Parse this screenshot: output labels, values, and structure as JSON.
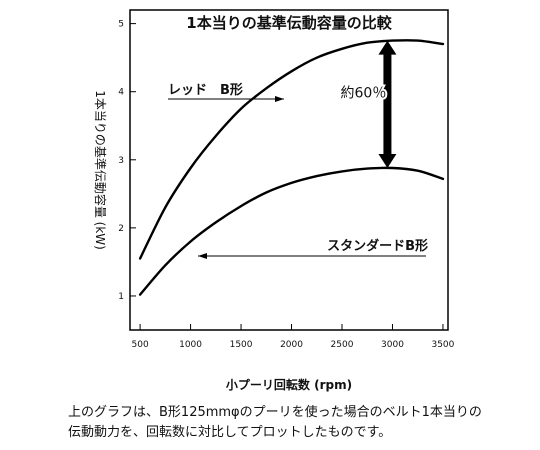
{
  "chart_data": {
    "type": "line",
    "title": "1本当りの基準伝動容量の比較",
    "xlabel": "小プーリ回転数 (rpm)",
    "ylabel": "1本当りの基準伝動容量 (kW)",
    "xlim": [
      400,
      3550
    ],
    "ylim": [
      0.5,
      5.2
    ],
    "x_ticks": [
      500,
      1000,
      1500,
      2000,
      2500,
      3000,
      3500
    ],
    "y_ticks": [
      1,
      2,
      3,
      4,
      5
    ],
    "grid": false,
    "series": [
      {
        "name": "レッド　B形",
        "x": [
          500,
          750,
          1000,
          1250,
          1500,
          1750,
          2000,
          2250,
          2500,
          2750,
          3000,
          3250,
          3500
        ],
        "values": [
          1.55,
          2.3,
          2.88,
          3.35,
          3.75,
          4.05,
          4.3,
          4.5,
          4.63,
          4.72,
          4.75,
          4.75,
          4.7
        ]
      },
      {
        "name": "スタンダードB形",
        "x": [
          500,
          750,
          1000,
          1250,
          1500,
          1750,
          2000,
          2250,
          2500,
          2750,
          3000,
          3250,
          3500
        ],
        "values": [
          1.02,
          1.45,
          1.8,
          2.08,
          2.32,
          2.52,
          2.66,
          2.76,
          2.83,
          2.87,
          2.88,
          2.84,
          2.72
        ]
      }
    ],
    "annotation": {
      "text": "約60％",
      "x": 2950,
      "from": 2.88,
      "to": 4.75
    }
  },
  "caption": {
    "line1": "上のグラフは、B形125mmφのプーリを使った場合のベルト1本当りの",
    "line2": "伝動動力を、回転数に対比してプロットしたものです。"
  }
}
